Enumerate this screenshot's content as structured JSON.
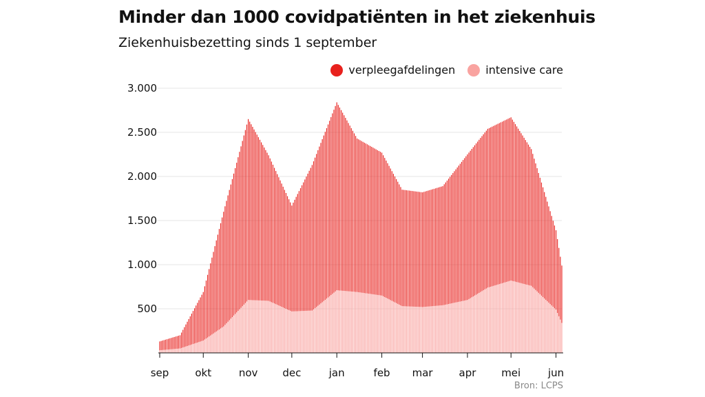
{
  "title": "Minder dan 1000 covidpatiënten in het ziekenhuis",
  "subtitle": "Ziekenhuisbezetting sinds 1 september",
  "source": "Bron: LCPS",
  "colors": {
    "ward": "#e8211d",
    "ic": "#f9a3a0",
    "ward_gap": "#f3b8b6",
    "grid": "#e6e6e6"
  },
  "legend": [
    {
      "label": "verpleegafdelingen",
      "color": "#e8211d"
    },
    {
      "label": "intensive care",
      "color": "#f9a3a0"
    }
  ],
  "chart_data": {
    "type": "bar",
    "stacked": true,
    "title": "Minder dan 1000 covidpatiënten in het ziekenhuis",
    "subtitle": "Ziekenhuisbezetting sinds 1 september",
    "ylim": [
      0,
      3000
    ],
    "y_ticks": [
      500,
      1000,
      1500,
      2000,
      2500,
      3000
    ],
    "y_tick_labels": [
      "500",
      "1.000",
      "1.500",
      "2.000",
      "2.500",
      "3.000"
    ],
    "x_ticks": [
      "sep",
      "okt",
      "nov",
      "dec",
      "jan",
      "feb",
      "mar",
      "apr",
      "mei",
      "jun"
    ],
    "grid": true,
    "legend_position": "top-right",
    "series": [
      {
        "name": "intensive care",
        "key_dates": [
          "2020-09-01",
          "2020-09-15",
          "2020-10-01",
          "2020-10-15",
          "2020-11-01",
          "2020-11-15",
          "2020-12-01",
          "2020-12-15",
          "2021-01-01",
          "2021-01-15",
          "2021-02-01",
          "2021-02-15",
          "2021-03-01",
          "2021-03-15",
          "2021-04-01",
          "2021-04-15",
          "2021-05-01",
          "2021-05-15",
          "2021-06-01",
          "2021-06-05"
        ],
        "values": [
          30,
          50,
          140,
          300,
          600,
          590,
          470,
          480,
          710,
          690,
          650,
          530,
          520,
          540,
          600,
          740,
          820,
          760,
          490,
          340
        ]
      },
      {
        "name": "verpleegafdelingen",
        "key_dates": [
          "2020-09-01",
          "2020-09-15",
          "2020-10-01",
          "2020-10-15",
          "2020-11-01",
          "2020-11-15",
          "2020-12-01",
          "2020-12-15",
          "2021-01-01",
          "2021-01-15",
          "2021-02-01",
          "2021-02-15",
          "2021-03-01",
          "2021-03-15",
          "2021-04-01",
          "2021-04-15",
          "2021-05-01",
          "2021-05-15",
          "2021-06-01",
          "2021-06-05"
        ],
        "values": [
          100,
          150,
          550,
          1300,
          2050,
          1650,
          1200,
          1650,
          2130,
          1740,
          1620,
          1320,
          1300,
          1350,
          1650,
          1800,
          1850,
          1550,
          900,
          650
        ]
      }
    ]
  }
}
